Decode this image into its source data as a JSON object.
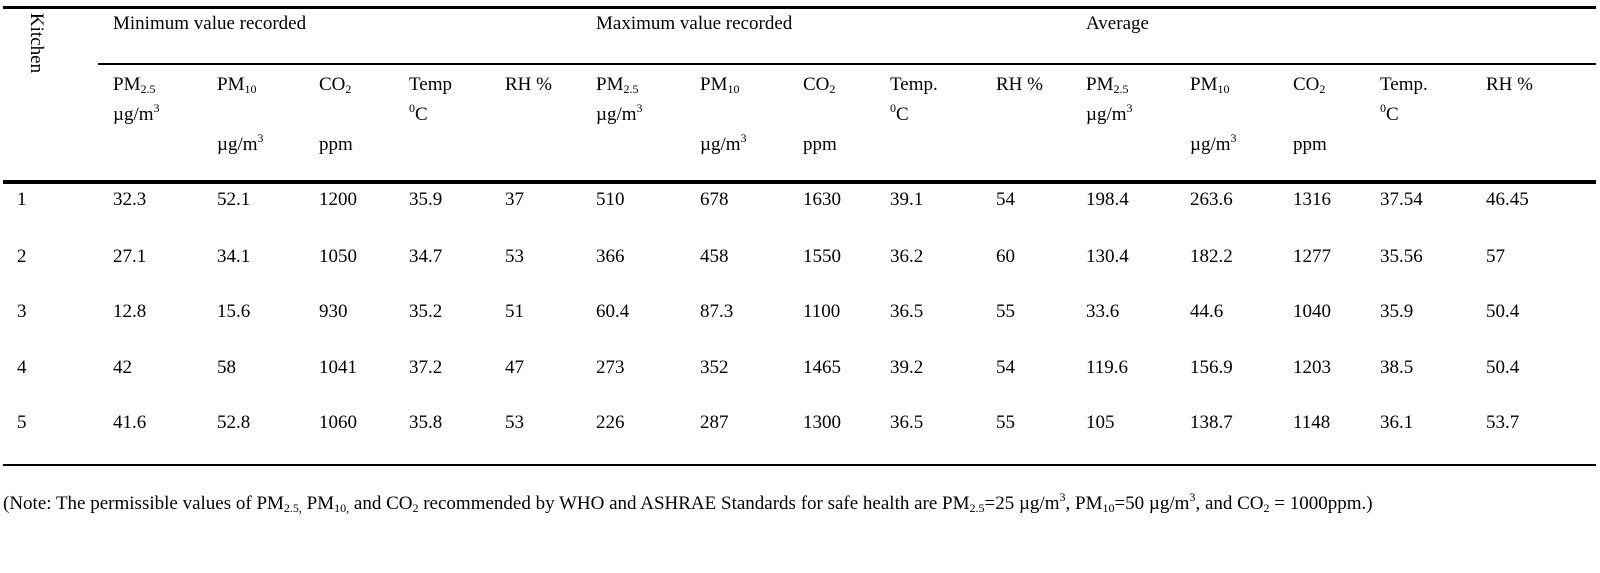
{
  "table": {
    "kitchen_header": "Kitchen",
    "group_headers": [
      "Minimum value recorded",
      "Maximum value recorded",
      "Average"
    ],
    "column_headers": [
      {
        "name": "PM",
        "sub": "2.5",
        "unit": "µg/m",
        "unit_sup": "3",
        "unit_row": 1
      },
      {
        "name": "PM",
        "sub": "10",
        "unit": "µg/m",
        "unit_sup": "3",
        "unit_row": 2
      },
      {
        "name": "CO",
        "sub": "2",
        "unit": "ppm",
        "unit_sup": "",
        "unit_row": 2
      },
      {
        "name": "Temp",
        "sub": "",
        "unit": "C",
        "unit_pre_sup": "0",
        "unit_row": 1
      },
      {
        "name": "RH %",
        "sub": "",
        "unit": "",
        "unit_sup": "",
        "unit_row": 0
      },
      {
        "name": "PM",
        "sub": "2.5",
        "unit": "µg/m",
        "unit_sup": "3",
        "unit_row": 1
      },
      {
        "name": "PM",
        "sub": "10",
        "unit": "µg/m",
        "unit_sup": "3",
        "unit_row": 2
      },
      {
        "name": "CO",
        "sub": "2",
        "unit": "ppm",
        "unit_sup": "",
        "unit_row": 2
      },
      {
        "name": "Temp.",
        "sub": "",
        "unit": "C",
        "unit_pre_sup": "0",
        "unit_row": 1
      },
      {
        "name": "RH %",
        "sub": "",
        "unit": "",
        "unit_sup": "",
        "unit_row": 0
      },
      {
        "name": "PM",
        "sub": "2.5",
        "unit": "µg/m",
        "unit_sup": "3",
        "unit_row": 1
      },
      {
        "name": "PM",
        "sub": "10",
        "unit": "µg/m",
        "unit_sup": "3",
        "unit_row": 2
      },
      {
        "name": "CO",
        "sub": "2",
        "unit": "ppm",
        "unit_sup": "",
        "unit_row": 2
      },
      {
        "name": "Temp.",
        "sub": "",
        "unit": "C",
        "unit_pre_sup": "0",
        "unit_row": 1
      },
      {
        "name": "RH %",
        "sub": "",
        "unit": "",
        "unit_sup": "",
        "unit_row": 0
      }
    ],
    "rows": [
      [
        "1",
        "32.3",
        "52.1",
        "1200",
        "35.9",
        "37",
        "510",
        "678",
        "1630",
        "39.1",
        "54",
        "198.4",
        "263.6",
        "1316",
        "37.54",
        "46.45"
      ],
      [
        "2",
        "27.1",
        "34.1",
        "1050",
        "34.7",
        "53",
        "366",
        "458",
        "1550",
        "36.2",
        "60",
        "130.4",
        "182.2",
        "1277",
        "35.56",
        "57"
      ],
      [
        "3",
        "12.8",
        "15.6",
        "930",
        "35.2",
        "51",
        "60.4",
        "87.3",
        "1100",
        "36.5",
        "55",
        "33.6",
        "44.6",
        "1040",
        "35.9",
        "50.4"
      ],
      [
        "4",
        "42",
        "58",
        "1041",
        "37.2",
        "47",
        "273",
        "352",
        "1465",
        "39.2",
        "54",
        "119.6",
        "156.9",
        "1203",
        "38.5",
        "50.4"
      ],
      [
        "5",
        "41.6",
        "52.8",
        "1060",
        "35.8",
        "53",
        "226",
        "287",
        "1300",
        "36.5",
        "55",
        "105",
        "138.7",
        "1148",
        "36.1",
        "53.7"
      ]
    ]
  },
  "note": {
    "t1": "(Note: The permissible values of PM",
    "s1": "2.5,",
    "t2": " PM",
    "s2": "10,",
    "t3": " and CO",
    "s3": "2",
    "t4": " recommended by WHO and ASHRAE Standards for safe health are PM",
    "s4": "2.5",
    "t5": "=25 µg/m",
    "p5": "3",
    "t6": ", PM",
    "s6": "10",
    "t7": "=50 µg/m",
    "p7": "3",
    "t8": ", and CO",
    "s8": "2",
    "t9": " = 1000ppm.)"
  }
}
